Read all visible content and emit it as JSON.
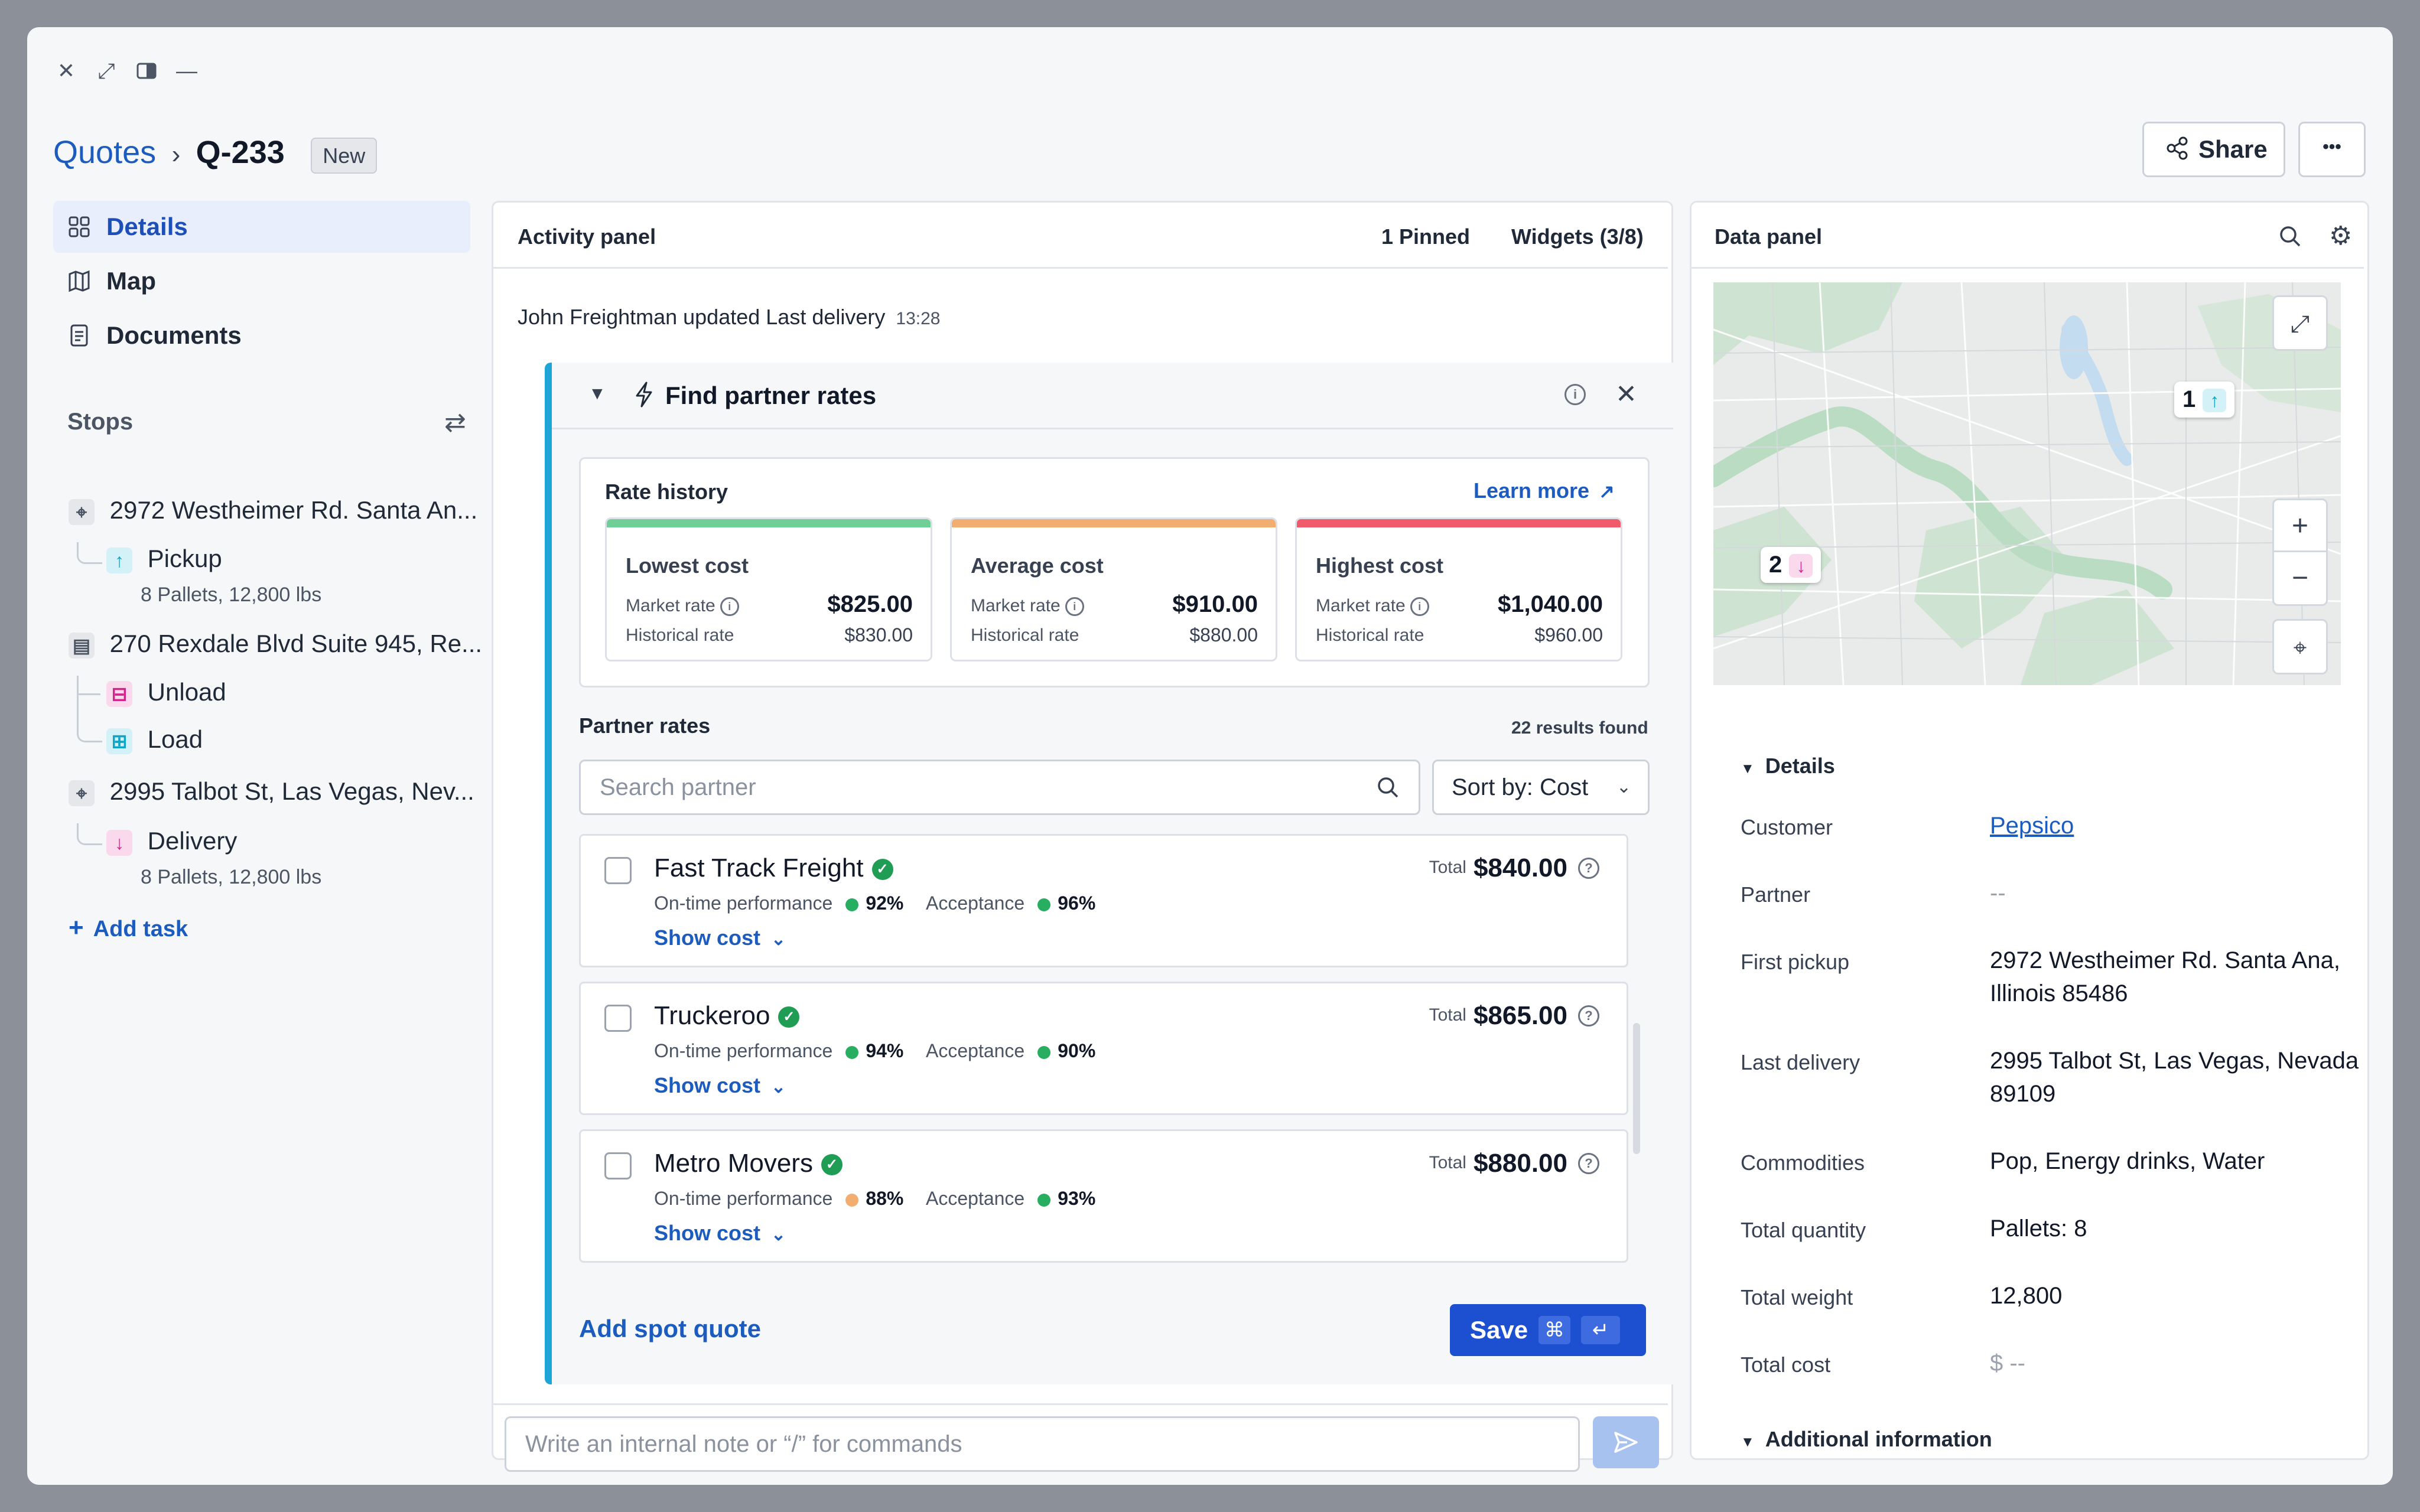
{
  "window": {
    "controls": [
      "close-icon",
      "expand-icon",
      "sidebar-toggle-icon",
      "minimize-icon"
    ]
  },
  "header": {
    "breadcrumb_root": "Quotes",
    "breadcrumb_current": "Q-233",
    "status_badge": "New",
    "share_label": "Share",
    "more_label": "•••"
  },
  "nav": {
    "items": [
      {
        "label": "Details",
        "icon": "grid-icon"
      },
      {
        "label": "Map",
        "icon": "map-icon"
      },
      {
        "label": "Documents",
        "icon": "document-icon"
      }
    ]
  },
  "stops": {
    "title": "Stops",
    "items": [
      {
        "address": "2972 Westheimer Rd. Santa An...",
        "tasks": [
          {
            "label": "Pickup",
            "detail": "8 Pallets, 12,800 lbs",
            "color": "#0ea5c6"
          }
        ]
      },
      {
        "address": "270 Rexdale Blvd Suite 945, Re...",
        "tasks": [
          {
            "label": "Unload",
            "color": "#d0258a"
          },
          {
            "label": "Load",
            "color": "#0ea5c6"
          }
        ]
      },
      {
        "address": "2995 Talbot St, Las Vegas, Nev...",
        "tasks": [
          {
            "label": "Delivery",
            "detail": "8 Pallets, 12,800 lbs",
            "color": "#d0258a"
          }
        ]
      }
    ],
    "add_task": "Add task"
  },
  "activity": {
    "title": "Activity panel",
    "pinned": "1 Pinned",
    "widgets": "Widgets (3/8)",
    "update_text": "John Freightman updated Last delivery",
    "update_time": "13:28",
    "widget_title": "Find partner rates",
    "rate_history": {
      "title": "Rate history",
      "learn_more": "Learn more",
      "market_label": "Market rate",
      "historical_label": "Historical rate",
      "cards": [
        {
          "title": "Lowest cost",
          "market": "$825.00",
          "historical": "$830.00",
          "color": "#6fcf97"
        },
        {
          "title": "Average cost",
          "market": "$910.00",
          "historical": "$880.00",
          "color": "#f2ad70"
        },
        {
          "title": "Highest cost",
          "market": "$1,040.00",
          "historical": "$960.00",
          "color": "#ef5b6a"
        }
      ]
    },
    "partner_rates": {
      "title": "Partner rates",
      "results": "22 results found",
      "search_placeholder": "Search partner",
      "sort_label": "Sort by: Cost",
      "ontime_label": "On-time performance",
      "acceptance_label": "Acceptance",
      "total_label": "Total",
      "show_cost": "Show cost",
      "rows": [
        {
          "name": "Fast Track Freight",
          "ontime": "92%",
          "ontime_color": "#27ae60",
          "acceptance": "96%",
          "acceptance_color": "#27ae60",
          "total": "$840.00"
        },
        {
          "name": "Truckeroo",
          "ontime": "94%",
          "ontime_color": "#27ae60",
          "acceptance": "90%",
          "acceptance_color": "#27ae60",
          "total": "$865.00"
        },
        {
          "name": "Metro Movers",
          "ontime": "88%",
          "ontime_color": "#f2ad70",
          "acceptance": "93%",
          "acceptance_color": "#27ae60",
          "total": "$880.00"
        }
      ]
    },
    "add_spot_quote": "Add spot quote",
    "save_label": "Save",
    "note_placeholder": "Write an internal note or “/” for commands"
  },
  "data_panel": {
    "title": "Data panel",
    "map_pins": [
      {
        "label": "1"
      },
      {
        "label": "2"
      }
    ],
    "details_title": "Details",
    "fields": [
      {
        "label": "Customer",
        "value": "Pepsico"
      },
      {
        "label": "Partner",
        "value": "--"
      },
      {
        "label": "First pickup",
        "value": "2972 Westheimer Rd. Santa Ana, Illinois 85486"
      },
      {
        "label": "Last delivery",
        "value": "2995 Talbot St, Las Vegas, Nevada 89109"
      },
      {
        "label": "Commodities",
        "value": "Pop, Energy drinks, Water"
      },
      {
        "label": "Total quantity",
        "value": "Pallets: 8"
      },
      {
        "label": "Total weight",
        "value": "12,800"
      },
      {
        "label": "Total cost",
        "value": "$ --"
      }
    ],
    "additional_title": "Additional information"
  }
}
